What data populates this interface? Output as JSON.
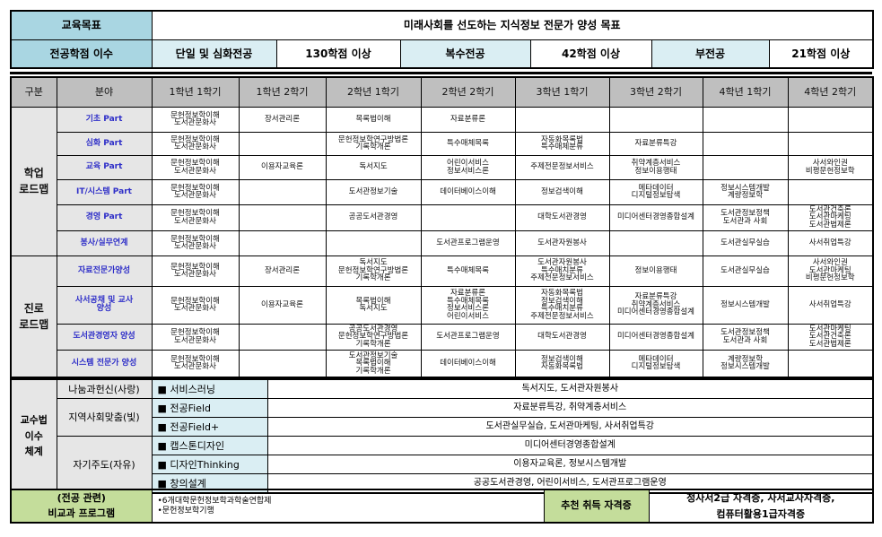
{
  "top": {
    "goal_label": "교육목표",
    "goal": "미래사회를 선도하는 지식정보 전문가 양성 목표",
    "credits_label": "전공학점 이수",
    "credits": [
      "단일 및 심화전공",
      "130학점 이상",
      "복수전공",
      "42학점 이상",
      "부전공",
      "21학점 이상"
    ]
  },
  "headers": [
    "구분",
    "분야",
    "1학년 1학기",
    "1학년 2학기",
    "2학년 1학기",
    "2학년 2학기",
    "3학년 1학기",
    "3학년 2학기",
    "4학년 1학기",
    "4학년 2학기"
  ],
  "groups": [
    {
      "label": "학업\n로드맵",
      "rows": [
        {
          "field": "기초 Part",
          "cells": [
            "문헌정보학이해\n도서관문화사",
            "장서관리론",
            "목록법이해",
            "자료분류론",
            "",
            "",
            "",
            ""
          ]
        },
        {
          "field": "심화 Part",
          "cells": [
            "문헌정보학이해\n도서관문화사",
            "",
            "문헌정보학연구방법론\n기록학개론",
            "특수매체목록",
            "자동화목록법\n특수매체분류",
            "자료분류특강",
            "",
            ""
          ]
        },
        {
          "field": "교육 Part",
          "cells": [
            "문헌정보학이해\n도서관문화사",
            "이용자교육론",
            "독서지도",
            "어린이서비스\n정보서비스론",
            "주제전문정보서비스",
            "취약계층서비스\n정보이용행태",
            "",
            "사서와인권\n비평문헌정보학"
          ]
        },
        {
          "field": "IT/시스템 Part",
          "cells": [
            "문헌정보학이해\n도서관문화사",
            "",
            "도서관정보기술",
            "데이터베이스이해",
            "정보검색이해",
            "메타데이터\n디지털정보탐색",
            "정보시스템개발\n계량정보학",
            ""
          ]
        },
        {
          "field": "경영 Part",
          "cells": [
            "문헌정보학이해\n도서관문화사",
            "",
            "공공도서관경영",
            "",
            "대학도서관경영",
            "미디어센터경영종합설계",
            "도서관정보정책\n도서관과 사회",
            "도서관건축론\n도서관마케팅\n도서관법제론"
          ]
        },
        {
          "field": "봉사/실무연계",
          "cells": [
            "문헌정보학이해\n도서관문화사",
            "",
            "",
            "도서관프로그램운영",
            "도서관자원봉사",
            "",
            "도서관실무실습",
            "사서취업특강"
          ]
        }
      ]
    },
    {
      "label": "진로\n로드맵",
      "rows": [
        {
          "field": "자료전문가양성",
          "cells": [
            "문헌정보학이해\n도서관문화사",
            "장서관리론",
            "독서지도\n문헌정보학연구방법론\n기록학개론",
            "특수매체목록",
            "도서관자원봉사\n특수매치분류\n주제전문정보서비스",
            "정보이용행태",
            "도서관실무실습",
            "사서와인권\n도서관마케팅\n비평문헌정보학"
          ]
        },
        {
          "field": "사서공채 및 교사\n양성",
          "cells": [
            "문헌정보학이해\n도서관문화사",
            "이용자교육론",
            "목록법이해\n독서지도",
            "자료분류론\n특수매체목록\n정보서비스론\n어린이서비스",
            "자동화목록법\n정보검색이해\n특수매치분류\n주제전문정보서비스",
            "자료분류특강\n취약계층서비스\n미디어센터경영종합설계",
            "정보시스템개발",
            "사서취업특강"
          ]
        },
        {
          "field": "도서관경영자 양성",
          "cells": [
            "문헌정보학이해\n도서관문화사",
            "",
            "공공도서관경영\n문헌정보학연구방법론\n기록학개론",
            "도서관프로그램운영",
            "대학도서관경영",
            "미디어센터경영종합설계",
            "도서관정보정책\n도서관과 사회",
            "도서관마케팅\n도서관건축론\n도서관법제론"
          ]
        },
        {
          "field": "시스템 전문가 양성",
          "cells": [
            "문헌정보학이해\n도서관문화사",
            "",
            "도서관정보기술\n목록법이해\n기록학개론",
            "데이터베이스이해",
            "정보검색이해\n자동화목록법",
            "메타데이터\n디지털정보탐색",
            "계량정보학\n정보시스템개발",
            ""
          ]
        }
      ]
    }
  ],
  "teaching": {
    "label": "교수법\n이수\n체계",
    "groups": [
      {
        "name": "나눔과헌신(사랑)",
        "methods": [
          {
            "method": "■ 서비스러닝",
            "courses": "독서지도, 도서관자원봉사"
          }
        ]
      },
      {
        "name": "지역사회맞춤(빛)",
        "methods": [
          {
            "method": "■ 전공Field",
            "courses": "자료분류특강, 취약계층서비스"
          },
          {
            "method": "■ 전공Field+",
            "courses": "도서관실무실습, 도서관마케팅, 사서취업특강"
          }
        ]
      },
      {
        "name": "자기주도(자유)",
        "methods": [
          {
            "method": "■ 캡스톤디자인",
            "courses": "미디어센터경영종합설계"
          },
          {
            "method": "■ 디자인Thinking",
            "courses": "이용자교육론, 정보시스템개발"
          },
          {
            "method": "■ 창의설계",
            "courses": "공공도서관경영, 어린이서비스, 도서관프로그램운영"
          }
        ]
      }
    ]
  },
  "bottom": {
    "program_label": "(전공 관련)\n비교과 프로그램",
    "programs": [
      "•6개대학문헌정보학과학술연합제",
      "•문헌정보학기행"
    ],
    "cert_label": "추천 취득 자격증",
    "certs": "정사서2급 자격증, 사서교사자격증,\n컴퓨터활용1급자격증"
  },
  "colors": {
    "label_blue": "#a9d6e2",
    "light_blue": "#daeef3",
    "header_gray": "#bfbfbf",
    "category_gray": "#e6e6e6",
    "field_text_blue": "#2f2fc8",
    "green": "#c4dd9b"
  }
}
